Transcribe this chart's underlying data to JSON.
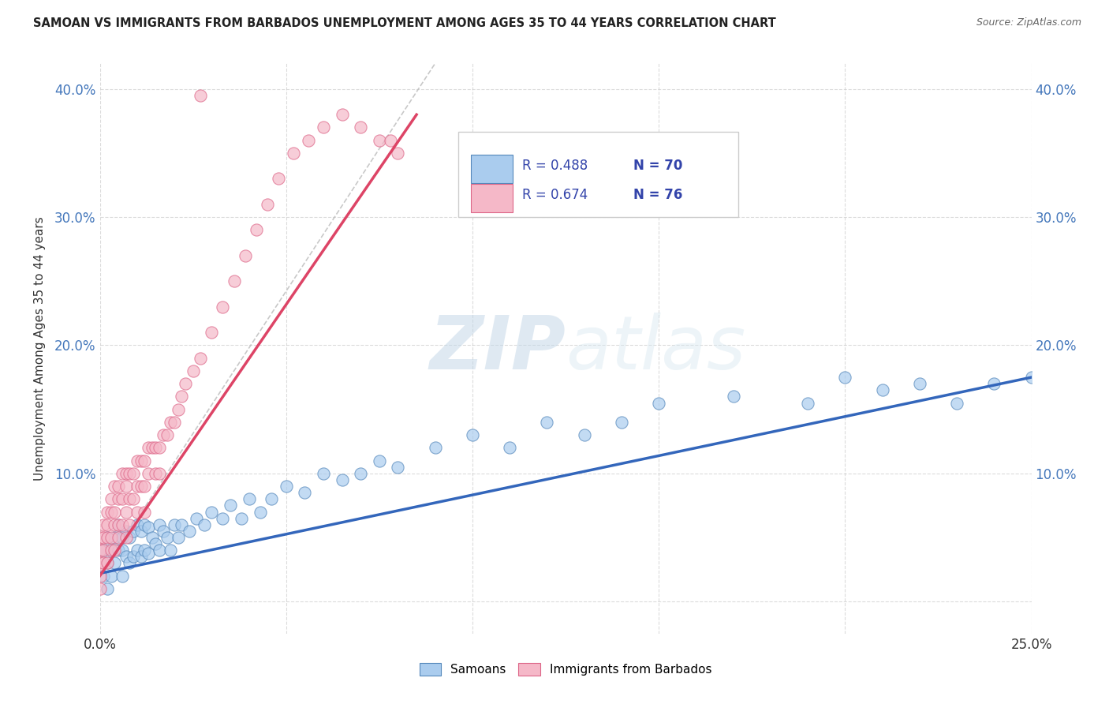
{
  "title": "SAMOAN VS IMMIGRANTS FROM BARBADOS UNEMPLOYMENT AMONG AGES 35 TO 44 YEARS CORRELATION CHART",
  "source": "Source: ZipAtlas.com",
  "ylabel": "Unemployment Among Ages 35 to 44 years",
  "xmin": 0.0,
  "xmax": 0.25,
  "ymin": -0.025,
  "ymax": 0.42,
  "x_tick_positions": [
    0.0,
    0.05,
    0.1,
    0.15,
    0.2,
    0.25
  ],
  "x_tick_labels": [
    "0.0%",
    "",
    "",
    "",
    "",
    "25.0%"
  ],
  "y_tick_positions": [
    0.0,
    0.1,
    0.2,
    0.3,
    0.4
  ],
  "y_tick_labels": [
    "",
    "10.0%",
    "20.0%",
    "30.0%",
    "40.0%"
  ],
  "grid_color": "#cccccc",
  "background_color": "#ffffff",
  "samoans_color": "#aaccee",
  "barbados_color": "#f5b8c8",
  "samoans_edge_color": "#5588bb",
  "barbados_edge_color": "#dd6688",
  "regression_samoans_color": "#3366bb",
  "regression_barbados_color": "#dd4466",
  "R_samoans": 0.488,
  "N_samoans": 70,
  "R_barbados": 0.674,
  "N_barbados": 76,
  "legend_color": "#3344aa",
  "watermark_color": "#d5e5f0",
  "tick_color": "#4477bb",
  "samoans_x": [
    0.001,
    0.001,
    0.002,
    0.002,
    0.002,
    0.003,
    0.003,
    0.004,
    0.004,
    0.005,
    0.005,
    0.006,
    0.006,
    0.006,
    0.007,
    0.007,
    0.008,
    0.008,
    0.009,
    0.009,
    0.01,
    0.01,
    0.011,
    0.011,
    0.012,
    0.012,
    0.013,
    0.013,
    0.014,
    0.015,
    0.016,
    0.016,
    0.017,
    0.018,
    0.019,
    0.02,
    0.021,
    0.022,
    0.024,
    0.026,
    0.028,
    0.03,
    0.033,
    0.035,
    0.038,
    0.04,
    0.043,
    0.046,
    0.05,
    0.055,
    0.06,
    0.065,
    0.07,
    0.075,
    0.08,
    0.09,
    0.1,
    0.11,
    0.12,
    0.13,
    0.14,
    0.15,
    0.17,
    0.19,
    0.2,
    0.21,
    0.22,
    0.23,
    0.24,
    0.25
  ],
  "samoans_y": [
    0.04,
    0.02,
    0.05,
    0.03,
    0.01,
    0.04,
    0.02,
    0.05,
    0.03,
    0.06,
    0.04,
    0.05,
    0.04,
    0.02,
    0.055,
    0.035,
    0.05,
    0.03,
    0.055,
    0.035,
    0.06,
    0.04,
    0.055,
    0.035,
    0.06,
    0.04,
    0.058,
    0.038,
    0.05,
    0.045,
    0.06,
    0.04,
    0.055,
    0.05,
    0.04,
    0.06,
    0.05,
    0.06,
    0.055,
    0.065,
    0.06,
    0.07,
    0.065,
    0.075,
    0.065,
    0.08,
    0.07,
    0.08,
    0.09,
    0.085,
    0.1,
    0.095,
    0.1,
    0.11,
    0.105,
    0.12,
    0.13,
    0.12,
    0.14,
    0.13,
    0.14,
    0.155,
    0.16,
    0.155,
    0.175,
    0.165,
    0.17,
    0.155,
    0.17,
    0.175
  ],
  "barbados_x": [
    0.0,
    0.0,
    0.0,
    0.0,
    0.0,
    0.001,
    0.001,
    0.001,
    0.001,
    0.002,
    0.002,
    0.002,
    0.002,
    0.003,
    0.003,
    0.003,
    0.003,
    0.004,
    0.004,
    0.004,
    0.004,
    0.005,
    0.005,
    0.005,
    0.005,
    0.006,
    0.006,
    0.006,
    0.007,
    0.007,
    0.007,
    0.007,
    0.008,
    0.008,
    0.008,
    0.009,
    0.009,
    0.01,
    0.01,
    0.01,
    0.011,
    0.011,
    0.012,
    0.012,
    0.012,
    0.013,
    0.013,
    0.014,
    0.015,
    0.015,
    0.016,
    0.016,
    0.017,
    0.018,
    0.019,
    0.02,
    0.021,
    0.022,
    0.023,
    0.025,
    0.027,
    0.03,
    0.033,
    0.036,
    0.039,
    0.042,
    0.045,
    0.048,
    0.052,
    0.056,
    0.06,
    0.065,
    0.07,
    0.075,
    0.078,
    0.08
  ],
  "barbados_y": [
    0.05,
    0.04,
    0.03,
    0.02,
    0.01,
    0.06,
    0.05,
    0.04,
    0.03,
    0.07,
    0.06,
    0.05,
    0.03,
    0.08,
    0.07,
    0.05,
    0.04,
    0.09,
    0.07,
    0.06,
    0.04,
    0.09,
    0.08,
    0.06,
    0.05,
    0.1,
    0.08,
    0.06,
    0.1,
    0.09,
    0.07,
    0.05,
    0.1,
    0.08,
    0.06,
    0.1,
    0.08,
    0.11,
    0.09,
    0.07,
    0.11,
    0.09,
    0.11,
    0.09,
    0.07,
    0.12,
    0.1,
    0.12,
    0.12,
    0.1,
    0.12,
    0.1,
    0.13,
    0.13,
    0.14,
    0.14,
    0.15,
    0.16,
    0.17,
    0.18,
    0.19,
    0.21,
    0.23,
    0.25,
    0.27,
    0.29,
    0.31,
    0.33,
    0.35,
    0.36,
    0.37,
    0.38,
    0.37,
    0.36,
    0.36,
    0.35
  ],
  "barbados_outlier_x": [
    0.027
  ],
  "barbados_outlier_y": [
    0.395
  ]
}
